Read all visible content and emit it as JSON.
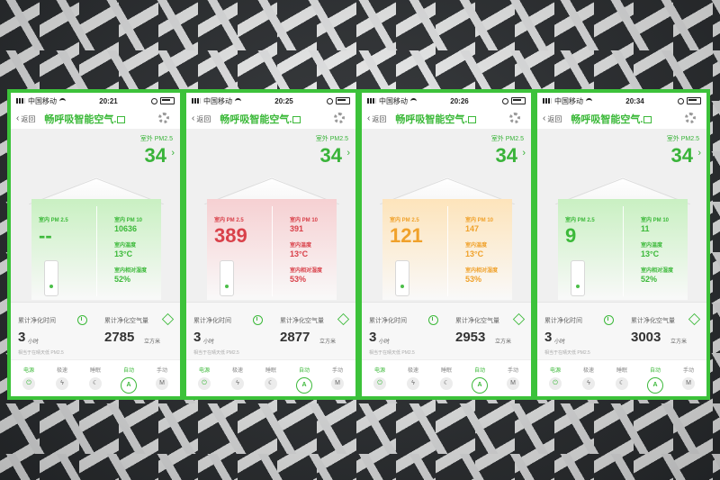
{
  "theme": {
    "accent": "#3cb93a",
    "frame": "#3cc23a"
  },
  "screens": [
    {
      "carrier": "中国移动",
      "time": "20:21",
      "back_label": "返回",
      "title": "畅呼吸智能空气.",
      "outdoor_label": "室外 PM2.5",
      "outdoor_value": "34",
      "indoor_pm25_label": "室内 PM 2.5",
      "indoor_pm25": "--",
      "pm10_label": "室内 PM 10",
      "pm10": "10636",
      "temp_label": "室内温度",
      "temp": "13°C",
      "humidity_label": "室内相对湿度",
      "humidity": "52%",
      "level": "good",
      "color": "#3cb93a",
      "tint": "#c9f0c2",
      "time_label": "累计净化时间",
      "hours": "3",
      "hours_unit": "小时",
      "volume_label": "累计净化空气量",
      "volume": "2785",
      "volume_unit": "立方米",
      "sub": "相当于在晴天低 PM2.5",
      "controls": [
        "电源",
        "极速",
        "睡眠",
        "自动",
        "手动"
      ]
    },
    {
      "carrier": "中国移动",
      "time": "20:25",
      "back_label": "返回",
      "title": "畅呼吸智能空气.",
      "outdoor_label": "室外 PM2.5",
      "outdoor_value": "34",
      "indoor_pm25_label": "室内 PM 2.5",
      "indoor_pm25": "389",
      "pm10_label": "室内 PM 10",
      "pm10": "391",
      "temp_label": "室内温度",
      "temp": "13°C",
      "humidity_label": "室内相对湿度",
      "humidity": "53%",
      "level": "bad",
      "color": "#d9414a",
      "tint": "#f6d0d2",
      "time_label": "累计净化时间",
      "hours": "3",
      "hours_unit": "小时",
      "volume_label": "累计净化空气量",
      "volume": "2877",
      "volume_unit": "立方米",
      "sub": "相当于在晴天低 PM2.5",
      "controls": [
        "电源",
        "极速",
        "睡眠",
        "自动",
        "手动"
      ]
    },
    {
      "carrier": "中国移动",
      "time": "20:26",
      "back_label": "返回",
      "title": "畅呼吸智能空气.",
      "outdoor_label": "室外 PM2.5",
      "outdoor_value": "34",
      "indoor_pm25_label": "室内 PM 2.5",
      "indoor_pm25": "121",
      "pm10_label": "室内 PM 10",
      "pm10": "147",
      "temp_label": "室内温度",
      "temp": "13°C",
      "humidity_label": "室内相对湿度",
      "humidity": "53%",
      "level": "moderate",
      "color": "#f0a12a",
      "tint": "#fde4bb",
      "time_label": "累计净化时间",
      "hours": "3",
      "hours_unit": "小时",
      "volume_label": "累计净化空气量",
      "volume": "2953",
      "volume_unit": "立方米",
      "sub": "相当于在晴天低 PM2.5",
      "controls": [
        "电源",
        "极速",
        "睡眠",
        "自动",
        "手动"
      ]
    },
    {
      "carrier": "中国移动",
      "time": "20:34",
      "back_label": "返回",
      "title": "畅呼吸智能空气.",
      "outdoor_label": "室外 PM2.5",
      "outdoor_value": "34",
      "indoor_pm25_label": "室内 PM 2.5",
      "indoor_pm25": "9",
      "pm10_label": "室内 PM 10",
      "pm10": "11",
      "temp_label": "室内温度",
      "temp": "13°C",
      "humidity_label": "室内相对湿度",
      "humidity": "52%",
      "level": "good",
      "color": "#3cb93a",
      "tint": "#c9f0c2",
      "time_label": "累计净化时间",
      "hours": "3",
      "hours_unit": "小时",
      "volume_label": "累计净化空气量",
      "volume": "3003",
      "volume_unit": "立方米",
      "sub": "相当于在晴天低 PM2.5",
      "controls": [
        "电源",
        "极速",
        "睡眠",
        "自动",
        "手动"
      ]
    }
  ]
}
